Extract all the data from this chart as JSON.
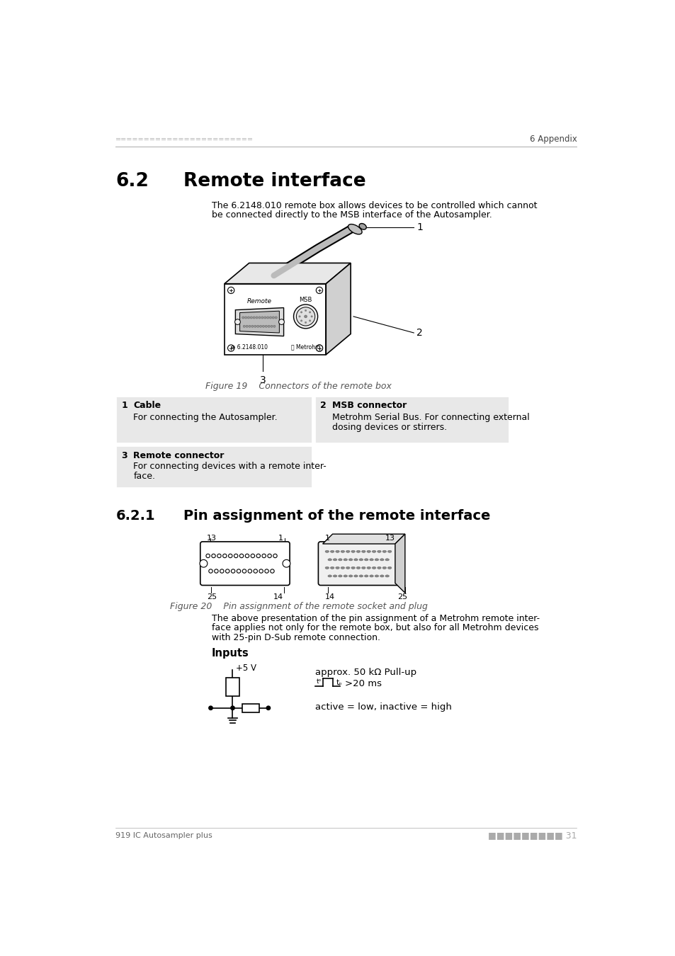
{
  "page_header_left": "========================",
  "page_header_right": "6 Appendix",
  "section_number": "6.2",
  "section_name": "Remote interface",
  "intro_line1": "The 6.2148.010 remote box allows devices to be controlled which cannot",
  "intro_line2": "be connected directly to the MSB interface of the Autosampler.",
  "figure19_caption": "Figure 19    Connectors of the remote box",
  "table_items": [
    {
      "num": "1",
      "title": "Cable",
      "desc": "For connecting the Autosampler.",
      "desc2": ""
    },
    {
      "num": "2",
      "title": "MSB connector",
      "desc": "Metrohm Serial Bus. For connecting external",
      "desc2": "dosing devices or stirrers."
    },
    {
      "num": "3",
      "title": "Remote connector",
      "desc": "For connecting devices with a remote inter-",
      "desc2": "face."
    }
  ],
  "subsection_number": "6.2.1",
  "subsection_name": "Pin assignment of the remote interface",
  "figure20_caption": "Figure 20    Pin assignment of the remote socket and plug",
  "body_line1": "The above presentation of the pin assignment of a Metrohm remote inter-",
  "body_line2": "face applies not only for the remote box, but also for all Metrohm devices",
  "body_line3": "with 25-pin D-Sub remote connection.",
  "inputs_title": "Inputs",
  "inputs_line1": "approx. 50 kΩ Pull-up",
  "inputs_line3": "active = low, inactive = high",
  "page_footer_left": "919 IC Autosampler plus",
  "bg_color": "#ffffff",
  "table_bg": "#e8e8e8"
}
